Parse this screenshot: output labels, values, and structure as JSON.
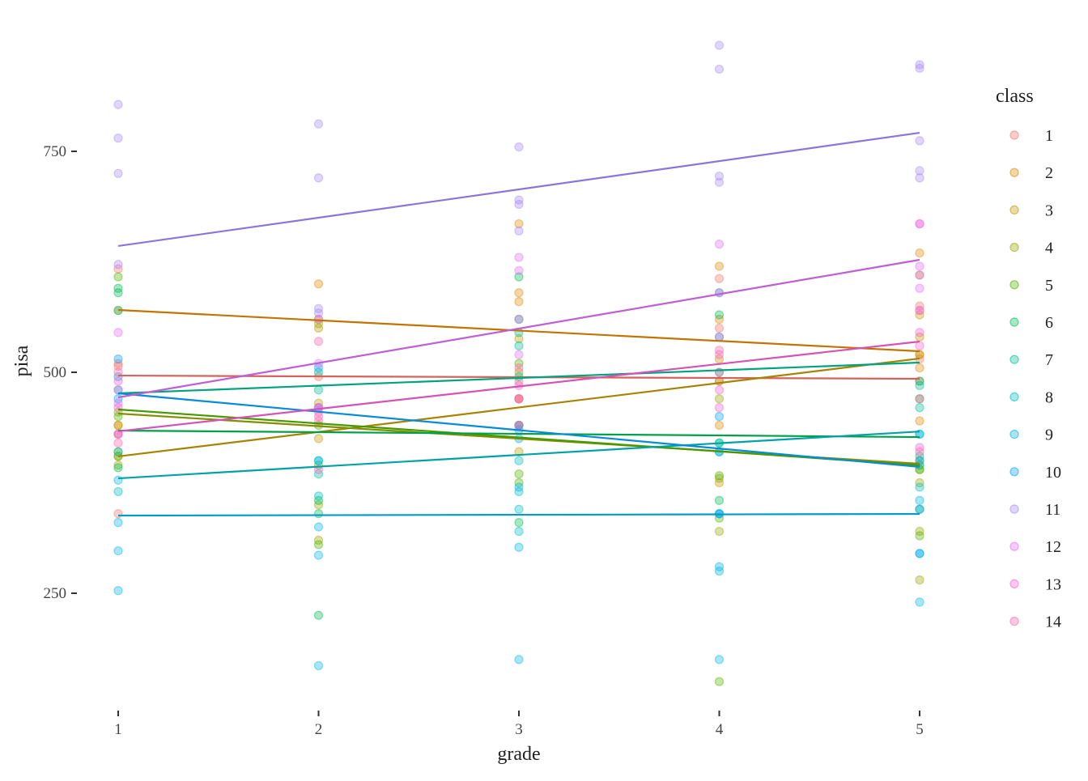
{
  "chart_data": {
    "type": "scatter",
    "xlabel": "grade",
    "ylabel": "pisa",
    "xlim": [
      0.84,
      5.16
    ],
    "ylim": [
      125,
      890
    ],
    "x_ticks": [
      1,
      2,
      3,
      4,
      5
    ],
    "y_ticks": [
      250,
      500,
      750
    ],
    "grid": false,
    "legend": {
      "title": "class",
      "position": "right"
    },
    "series": [
      {
        "name": "1",
        "color": "#F8766D",
        "line": [
          [
            1,
            496.3
          ],
          [
            5,
            492.7
          ]
        ],
        "points": [
          [
            1,
            617
          ],
          [
            1,
            507
          ],
          [
            1,
            510
          ],
          [
            1,
            340
          ],
          [
            2,
            455
          ],
          [
            2,
            495
          ],
          [
            3,
            490
          ],
          [
            3,
            470
          ],
          [
            4,
            606
          ],
          [
            4,
            550
          ],
          [
            4,
            490
          ],
          [
            5,
            575
          ],
          [
            5,
            515
          ],
          [
            5,
            490
          ]
        ]
      },
      {
        "name": "2",
        "color": "#E38900",
        "line": [
          [
            1,
            570.5
          ],
          [
            5,
            523.8
          ]
        ],
        "points": [
          [
            1,
            570
          ],
          [
            1,
            440
          ],
          [
            2,
            600
          ],
          [
            2,
            560
          ],
          [
            3,
            668
          ],
          [
            3,
            580
          ],
          [
            3,
            590
          ],
          [
            4,
            620
          ],
          [
            4,
            560
          ],
          [
            4,
            440
          ],
          [
            5,
            635
          ],
          [
            5,
            520
          ],
          [
            5,
            445
          ],
          [
            5,
            505
          ]
        ]
      },
      {
        "name": "3",
        "color": "#C49A00",
        "line": [
          [
            1,
            404.8
          ],
          [
            5,
            515.6
          ]
        ],
        "points": [
          [
            1,
            440
          ],
          [
            1,
            405
          ],
          [
            1,
            430
          ],
          [
            2,
            425
          ],
          [
            2,
            465
          ],
          [
            2,
            550
          ],
          [
            3,
            440
          ],
          [
            3,
            410
          ],
          [
            3,
            538
          ],
          [
            4,
            515
          ],
          [
            4,
            490
          ],
          [
            4,
            375
          ],
          [
            5,
            610
          ],
          [
            5,
            565
          ],
          [
            5,
            540
          ],
          [
            5,
            520
          ],
          [
            5,
            400
          ]
        ]
      },
      {
        "name": "4",
        "color": "#99A800",
        "line": [
          [
            1,
            453.3
          ],
          [
            5,
            396.5
          ]
        ],
        "points": [
          [
            1,
            455
          ],
          [
            1,
            410
          ],
          [
            1,
            395
          ],
          [
            2,
            310
          ],
          [
            2,
            350
          ],
          [
            2,
            555
          ],
          [
            3,
            500
          ],
          [
            3,
            470
          ],
          [
            3,
            440
          ],
          [
            4,
            380
          ],
          [
            4,
            320
          ],
          [
            4,
            470
          ],
          [
            5,
            395
          ],
          [
            5,
            375
          ],
          [
            5,
            320
          ],
          [
            5,
            265
          ]
        ]
      },
      {
        "name": "5",
        "color": "#53B400",
        "line": [
          [
            1,
            457.9
          ],
          [
            5,
            394.7
          ]
        ],
        "points": [
          [
            1,
            608
          ],
          [
            1,
            450
          ],
          [
            1,
            405
          ],
          [
            2,
            305
          ],
          [
            2,
            440
          ],
          [
            2,
            395
          ],
          [
            3,
            510
          ],
          [
            3,
            385
          ],
          [
            3,
            375
          ],
          [
            4,
            383
          ],
          [
            4,
            335
          ],
          [
            4,
            150
          ],
          [
            5,
            390
          ],
          [
            5,
            390
          ],
          [
            5,
            315
          ]
        ]
      },
      {
        "name": "6",
        "color": "#00BC56",
        "line": [
          [
            1,
            434.1
          ],
          [
            5,
            426.7
          ]
        ],
        "points": [
          [
            1,
            595
          ],
          [
            1,
            590
          ],
          [
            1,
            392
          ],
          [
            2,
            225
          ],
          [
            2,
            355
          ],
          [
            2,
            340
          ],
          [
            3,
            608
          ],
          [
            3,
            560
          ],
          [
            3,
            330
          ],
          [
            4,
            565
          ],
          [
            4,
            420
          ],
          [
            4,
            355
          ],
          [
            5,
            490
          ],
          [
            5,
            470
          ],
          [
            5,
            345
          ]
        ]
      },
      {
        "name": "7",
        "color": "#00C094",
        "line": [
          [
            1,
            476.2
          ],
          [
            5,
            511.0
          ]
        ],
        "points": [
          [
            1,
            570
          ],
          [
            1,
            480
          ],
          [
            2,
            480
          ],
          [
            2,
            500
          ],
          [
            2,
            385
          ],
          [
            3,
            530
          ],
          [
            3,
            495
          ],
          [
            3,
            545
          ],
          [
            4,
            590
          ],
          [
            4,
            540
          ],
          [
            4,
            500
          ],
          [
            5,
            485
          ],
          [
            5,
            460
          ],
          [
            5,
            405
          ]
        ]
      },
      {
        "name": "8",
        "color": "#00BFC4",
        "line": [
          [
            1,
            380.0
          ],
          [
            5,
            433.0
          ]
        ],
        "points": [
          [
            1,
            410
          ],
          [
            1,
            365
          ],
          [
            2,
            400
          ],
          [
            2,
            360
          ],
          [
            3,
            400
          ],
          [
            3,
            365
          ],
          [
            3,
            345
          ],
          [
            3,
            320
          ],
          [
            4,
            420
          ],
          [
            4,
            410
          ],
          [
            4,
            340
          ],
          [
            5,
            430
          ],
          [
            5,
            395
          ],
          [
            5,
            370
          ]
        ]
      },
      {
        "name": "9",
        "color": "#00B6EB",
        "line": [
          [
            1,
            337.9
          ],
          [
            5,
            339.7
          ]
        ],
        "points": [
          [
            1,
            378
          ],
          [
            1,
            330
          ],
          [
            1,
            298
          ],
          [
            1,
            253
          ],
          [
            2,
            400
          ],
          [
            2,
            325
          ],
          [
            2,
            293
          ],
          [
            2,
            168
          ],
          [
            3,
            370
          ],
          [
            3,
            302
          ],
          [
            3,
            175
          ],
          [
            4,
            340
          ],
          [
            4,
            280
          ],
          [
            4,
            275
          ],
          [
            4,
            175
          ],
          [
            5,
            430
          ],
          [
            5,
            355
          ],
          [
            5,
            295
          ],
          [
            5,
            240
          ]
        ]
      },
      {
        "name": "10",
        "color": "#06A4FF",
        "line": [
          [
            1,
            476.2
          ],
          [
            5,
            392.9
          ]
        ],
        "points": [
          [
            1,
            515
          ],
          [
            1,
            495
          ],
          [
            1,
            470
          ],
          [
            2,
            505
          ],
          [
            2,
            460
          ],
          [
            3,
            440
          ],
          [
            3,
            435
          ],
          [
            3,
            425
          ],
          [
            4,
            450
          ],
          [
            4,
            410
          ],
          [
            4,
            340
          ],
          [
            5,
            400
          ],
          [
            5,
            345
          ],
          [
            5,
            295
          ]
        ]
      },
      {
        "name": "11",
        "color": "#A58AFF",
        "line": [
          [
            1,
            642.9
          ],
          [
            5,
            771.0
          ]
        ],
        "points": [
          [
            1,
            803
          ],
          [
            1,
            765
          ],
          [
            1,
            725
          ],
          [
            1,
            622
          ],
          [
            2,
            781
          ],
          [
            2,
            720
          ],
          [
            2,
            572
          ],
          [
            2,
            567
          ],
          [
            3,
            755
          ],
          [
            3,
            695
          ],
          [
            3,
            690
          ],
          [
            3,
            660
          ],
          [
            4,
            870
          ],
          [
            4,
            843
          ],
          [
            4,
            722
          ],
          [
            4,
            715
          ],
          [
            5,
            848
          ],
          [
            5,
            844
          ],
          [
            5,
            762
          ],
          [
            5,
            728
          ],
          [
            5,
            720
          ]
        ]
      },
      {
        "name": "12",
        "color": "#DF70F8",
        "line": [
          [
            1,
            471.6
          ],
          [
            5,
            627.3
          ]
        ],
        "points": [
          [
            1,
            545
          ],
          [
            1,
            480
          ],
          [
            1,
            465
          ],
          [
            1,
            430
          ],
          [
            2,
            560
          ],
          [
            2,
            510
          ],
          [
            2,
            460
          ],
          [
            3,
            630
          ],
          [
            3,
            615
          ],
          [
            3,
            560
          ],
          [
            3,
            520
          ],
          [
            4,
            645
          ],
          [
            4,
            590
          ],
          [
            4,
            540
          ],
          [
            5,
            668
          ],
          [
            5,
            620
          ],
          [
            5,
            610
          ],
          [
            5,
            595
          ],
          [
            5,
            570
          ]
        ]
      },
      {
        "name": "13",
        "color": "#FB61D7",
        "line": [
          [
            1,
            433.2
          ],
          [
            5,
            534.8
          ]
        ],
        "points": [
          [
            1,
            490
          ],
          [
            1,
            460
          ],
          [
            1,
            430
          ],
          [
            2,
            460
          ],
          [
            2,
            450
          ],
          [
            2,
            390
          ],
          [
            3,
            485
          ],
          [
            3,
            470
          ],
          [
            3,
            440
          ],
          [
            4,
            520
          ],
          [
            4,
            480
          ],
          [
            4,
            460
          ],
          [
            5,
            668
          ],
          [
            5,
            545
          ],
          [
            5,
            530
          ],
          [
            5,
            415
          ]
        ]
      },
      {
        "name": "14",
        "color": "#FF66A8",
        "points": [
          [
            1,
            500
          ],
          [
            1,
            420
          ],
          [
            2,
            535
          ],
          [
            2,
            445
          ],
          [
            3,
            505
          ],
          [
            3,
            470
          ],
          [
            4,
            525
          ],
          [
            4,
            500
          ],
          [
            5,
            570
          ],
          [
            5,
            470
          ],
          [
            5,
            410
          ]
        ]
      }
    ]
  }
}
